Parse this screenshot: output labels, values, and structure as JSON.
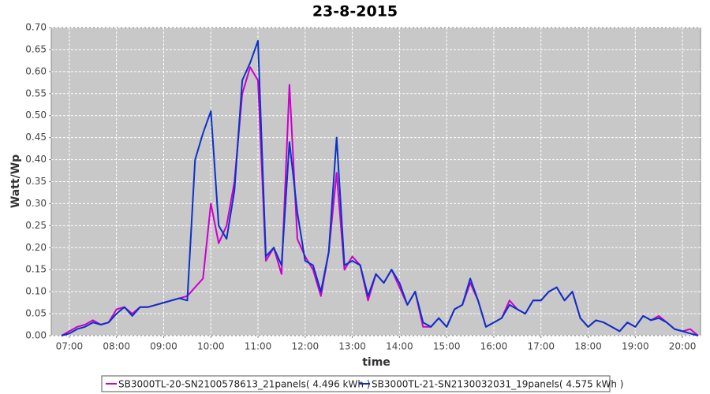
{
  "chart_data": {
    "type": "line",
    "title": "23-8-2015",
    "x_label": "time",
    "y_label": "Watt/Wp",
    "x": [
      "06:50",
      "07:00",
      "07:10",
      "07:20",
      "07:30",
      "07:40",
      "07:50",
      "08:00",
      "08:10",
      "08:20",
      "08:30",
      "08:40",
      "08:50",
      "09:00",
      "09:10",
      "09:20",
      "09:30",
      "09:40",
      "09:50",
      "10:00",
      "10:10",
      "10:20",
      "10:30",
      "10:40",
      "10:50",
      "11:00",
      "11:10",
      "11:20",
      "11:30",
      "11:40",
      "11:50",
      "12:00",
      "12:10",
      "12:20",
      "12:30",
      "12:40",
      "12:50",
      "13:00",
      "13:10",
      "13:20",
      "13:30",
      "13:40",
      "13:50",
      "14:00",
      "14:10",
      "14:20",
      "14:30",
      "14:40",
      "14:50",
      "15:00",
      "15:10",
      "15:20",
      "15:30",
      "15:40",
      "15:50",
      "16:00",
      "16:10",
      "16:20",
      "16:30",
      "16:40",
      "16:50",
      "17:00",
      "17:10",
      "17:20",
      "17:30",
      "17:40",
      "17:50",
      "18:00",
      "18:10",
      "18:20",
      "18:30",
      "18:40",
      "18:50",
      "19:00",
      "19:10",
      "19:20",
      "19:30",
      "19:40",
      "19:50",
      "20:00",
      "20:10",
      "20:20"
    ],
    "series": [
      {
        "name": "SB3000TL-20-SN2100578613_21panels( 4.496 kWh )",
        "color": "#cc00cc",
        "values": [
          0.0,
          0.01,
          0.02,
          0.025,
          0.035,
          0.025,
          0.03,
          0.06,
          0.065,
          0.05,
          0.065,
          0.065,
          0.07,
          0.075,
          0.08,
          0.085,
          0.09,
          0.11,
          0.13,
          0.3,
          0.21,
          0.25,
          0.35,
          0.55,
          0.61,
          0.58,
          0.17,
          0.2,
          0.14,
          0.57,
          0.22,
          0.18,
          0.15,
          0.09,
          0.19,
          0.37,
          0.15,
          0.18,
          0.16,
          0.08,
          0.14,
          0.12,
          0.15,
          0.11,
          0.07,
          0.1,
          0.02,
          0.02,
          0.04,
          0.02,
          0.06,
          0.07,
          0.12,
          0.08,
          0.02,
          0.03,
          0.04,
          0.08,
          0.06,
          0.05,
          0.08,
          0.08,
          0.1,
          0.11,
          0.08,
          0.1,
          0.04,
          0.02,
          0.035,
          0.03,
          0.02,
          0.01,
          0.03,
          0.02,
          0.045,
          0.035,
          0.045,
          0.03,
          0.015,
          0.01,
          0.015,
          0.0
        ]
      },
      {
        "name": "SB3000TL-21-SN2130032031_19panels( 4.575 kWh )",
        "color": "#0a32c8",
        "values": [
          0.0,
          0.005,
          0.015,
          0.02,
          0.03,
          0.025,
          0.03,
          0.05,
          0.065,
          0.045,
          0.065,
          0.065,
          0.07,
          0.075,
          0.08,
          0.085,
          0.08,
          0.4,
          0.46,
          0.51,
          0.25,
          0.22,
          0.33,
          0.58,
          0.62,
          0.67,
          0.18,
          0.2,
          0.16,
          0.44,
          0.28,
          0.17,
          0.16,
          0.1,
          0.19,
          0.45,
          0.16,
          0.17,
          0.16,
          0.09,
          0.14,
          0.12,
          0.15,
          0.12,
          0.07,
          0.1,
          0.03,
          0.02,
          0.04,
          0.02,
          0.06,
          0.07,
          0.13,
          0.08,
          0.02,
          0.03,
          0.04,
          0.07,
          0.06,
          0.05,
          0.08,
          0.08,
          0.1,
          0.11,
          0.08,
          0.1,
          0.04,
          0.02,
          0.035,
          0.03,
          0.02,
          0.01,
          0.03,
          0.02,
          0.045,
          0.035,
          0.04,
          0.03,
          0.015,
          0.01,
          0.005,
          0.0
        ]
      }
    ],
    "xlim": [
      "06:37",
      "20:23"
    ],
    "xticks": [
      "07:00",
      "08:00",
      "09:00",
      "10:00",
      "11:00",
      "12:00",
      "13:00",
      "14:00",
      "15:00",
      "16:00",
      "17:00",
      "18:00",
      "19:00",
      "20:00"
    ],
    "ylim": [
      0,
      0.7
    ],
    "yticks": [
      {
        "value": 0,
        "label": "0.00"
      },
      {
        "value": 0.05,
        "label": "0.05"
      },
      {
        "value": 0.1,
        "label": "0.10"
      },
      {
        "value": 0.15,
        "label": "0.15"
      },
      {
        "value": 0.2,
        "label": "0.20"
      },
      {
        "value": 0.25,
        "label": "0.25"
      },
      {
        "value": 0.3,
        "label": "0.30"
      },
      {
        "value": 0.35,
        "label": "0.35"
      },
      {
        "value": 0.4,
        "label": "0.40"
      },
      {
        "value": 0.45,
        "label": "0.45"
      },
      {
        "value": 0.5,
        "label": "0.50"
      },
      {
        "value": 0.55,
        "label": "0.55"
      },
      {
        "value": 0.6,
        "label": "0.60"
      },
      {
        "value": 0.65,
        "label": "0.65"
      },
      {
        "value": 0.7,
        "label": "0.70"
      }
    ],
    "grid": true,
    "legend": "bottom"
  }
}
